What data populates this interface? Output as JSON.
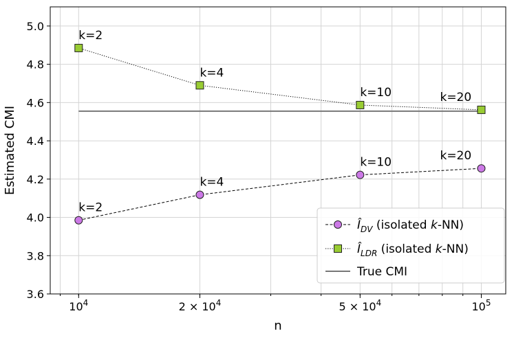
{
  "chart_data": {
    "type": "line",
    "title": "",
    "xlabel": "n",
    "ylabel": "Estimated CMI",
    "xscale": "log",
    "xlim": [
      8500,
      115000
    ],
    "ylim": [
      3.6,
      5.1
    ],
    "grid": true,
    "legend_position": "lower-right",
    "x": [
      10000,
      20000,
      50000,
      100000
    ],
    "x_tick_labels": [
      {
        "value": 10000,
        "base": "10",
        "exp": "4"
      },
      {
        "value": 20000,
        "base": "2 × 10",
        "exp": "4"
      },
      {
        "value": 50000,
        "base": "5 × 10",
        "exp": "4"
      },
      {
        "value": 100000,
        "base": "10",
        "exp": "5"
      }
    ],
    "y_ticks": [
      "3.6",
      "3.8",
      "4.0",
      "4.2",
      "4.4",
      "4.6",
      "4.8",
      "5.0"
    ],
    "series": [
      {
        "name": "Î_DV (isolated k-NN)",
        "legend_main": "Î",
        "legend_sub": "DV",
        "legend_rest_1": " (isolated ",
        "legend_italic": "k",
        "legend_rest_2": "-NN)",
        "values": [
          3.985,
          4.118,
          4.222,
          4.256
        ],
        "marker": "circle",
        "line_style": "dashed",
        "color": "#cc79e6",
        "annotations": [
          "k=2",
          "k=4",
          "k=10",
          "k=20"
        ]
      },
      {
        "name": "Î_LDR (isolated k-NN)",
        "legend_main": "Î",
        "legend_sub": "LDR",
        "legend_rest_1": " (isolated ",
        "legend_italic": "k",
        "legend_rest_2": "-NN)",
        "values": [
          4.885,
          4.69,
          4.587,
          4.562
        ],
        "marker": "square",
        "line_style": "dotted",
        "color": "#99cc33",
        "annotations": [
          "k=2",
          "k=4",
          "k=10",
          "k=20"
        ]
      }
    ],
    "reference_line": {
      "name": "True CMI",
      "label": "True CMI",
      "value": 4.555,
      "x_range": [
        10000,
        100000
      ],
      "color": "#777777"
    }
  }
}
